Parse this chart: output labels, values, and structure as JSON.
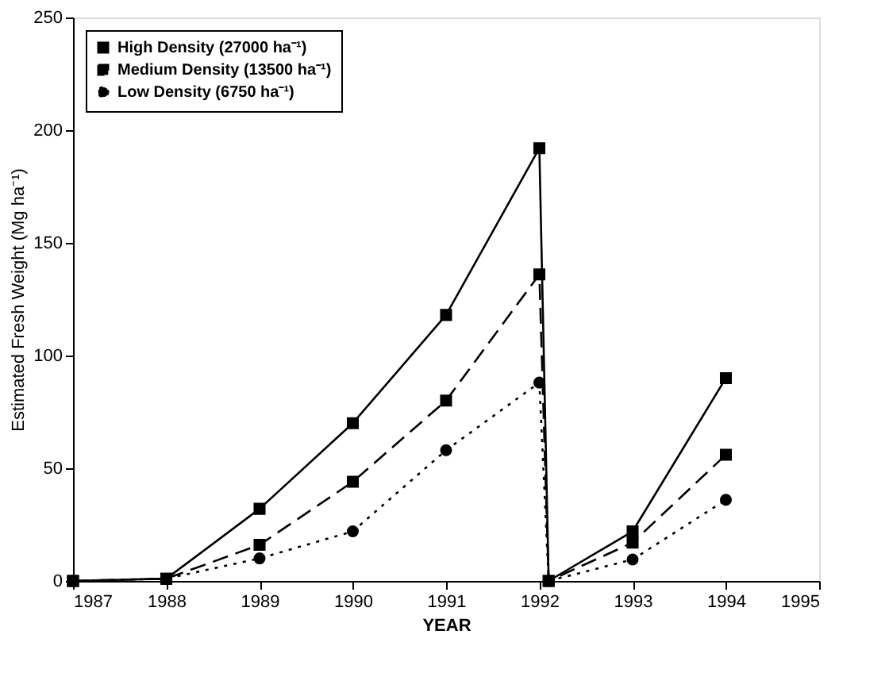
{
  "chart_data": {
    "type": "line",
    "xlabel": "YEAR",
    "ylabel": "Estimated Fresh Weight (Mg ha⁻¹)",
    "x": [
      1987,
      1988,
      1989,
      1990,
      1991,
      1992,
      1992.1,
      1993,
      1994
    ],
    "series": [
      {
        "name": "High Density (27000 ha⁻¹)",
        "color": "#000000",
        "marker": "square",
        "line_style": "solid",
        "values": [
          0,
          1,
          32,
          70,
          118,
          192,
          0,
          22,
          90
        ]
      },
      {
        "name": "Medium Density (13500 ha⁻¹)",
        "color": "#000000",
        "marker": "square",
        "line_style": "dashed",
        "values": [
          0,
          1,
          16,
          44,
          80,
          136,
          0,
          17,
          56
        ]
      },
      {
        "name": "Low Density (6750 ha⁻¹)",
        "color": "#000000",
        "marker": "circle",
        "line_style": "dotted",
        "values": [
          0,
          1,
          10,
          22,
          58,
          88,
          0,
          9.5,
          36
        ]
      }
    ],
    "xlim": [
      1987,
      1995
    ],
    "xticks": [
      1987,
      1988,
      1989,
      1990,
      1991,
      1992,
      1993,
      1994,
      1995
    ],
    "ylim": [
      0,
      250
    ],
    "yticks": [
      0,
      50,
      100,
      150,
      200,
      250
    ],
    "grid": false,
    "legend": "top left"
  }
}
